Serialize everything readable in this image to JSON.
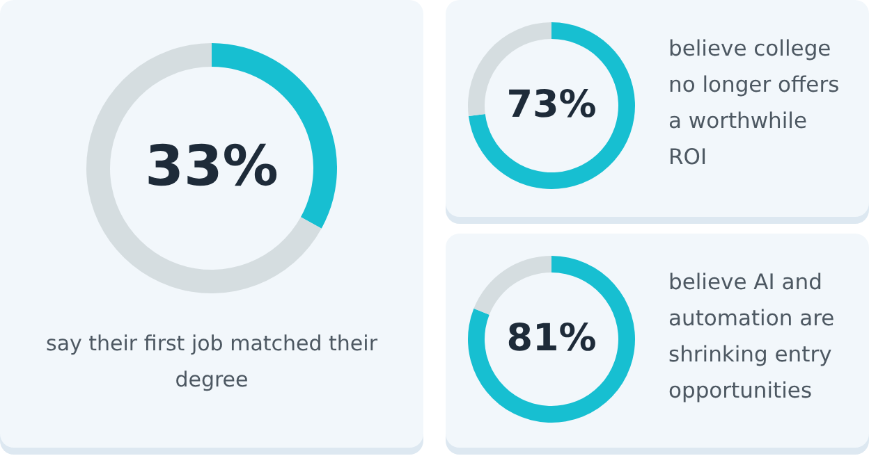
{
  "chart_data": [
    {
      "type": "donut",
      "categories": [
        null,
        null
      ],
      "values": [
        33,
        67
      ],
      "colors": [
        "#17bfd1",
        "#d5dde0"
      ],
      "value_labels": [
        "33%",
        null
      ],
      "annotations": [
        "say their first job matched their degree"
      ]
    },
    {
      "type": "donut",
      "categories": [
        null,
        null
      ],
      "values": [
        73,
        27
      ],
      "colors": [
        "#17bfd1",
        "#d5dde0"
      ],
      "value_labels": [
        "73%",
        null
      ],
      "annotations": [
        "believe college no longer offers a worthwhile ROI"
      ]
    },
    {
      "type": "donut",
      "categories": [
        null,
        null
      ],
      "values": [
        81,
        19
      ],
      "colors": [
        "#17bfd1",
        "#d5dde0"
      ],
      "value_labels": [
        "81%",
        null
      ],
      "annotations": [
        "believe AI and automation are shrinking entry opportunities"
      ]
    }
  ]
}
